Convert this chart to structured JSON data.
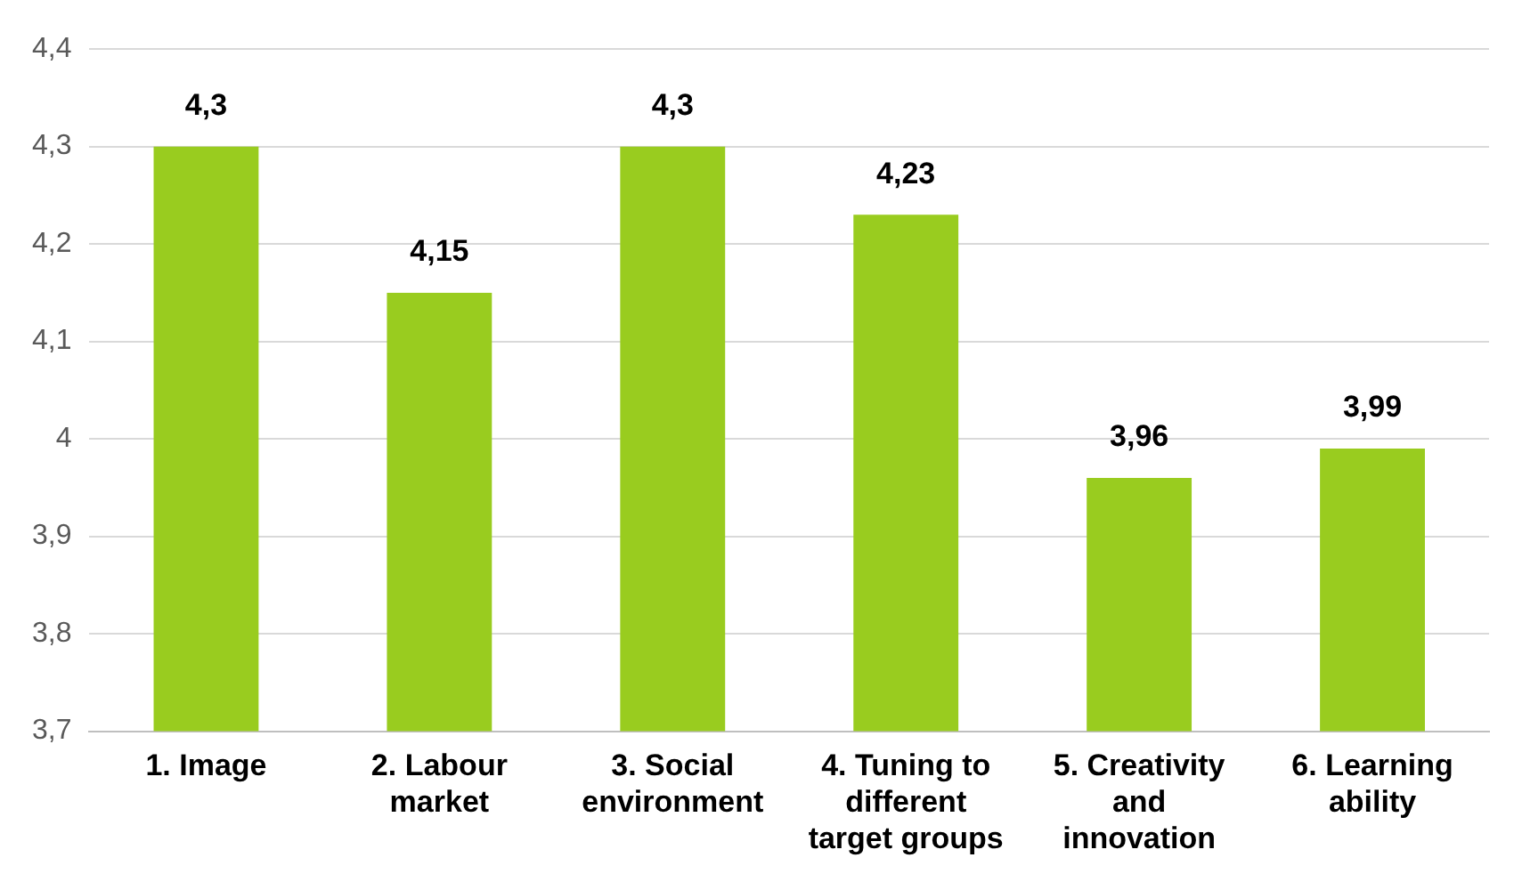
{
  "chart_data": {
    "type": "bar",
    "categories": [
      "1. Image",
      "2. Labour market",
      "3. Social environment",
      "4. Tuning to different target groups",
      "5. Creativity and innovation",
      "6. Learning ability"
    ],
    "values": [
      4.3,
      4.15,
      4.3,
      4.23,
      3.96,
      3.99
    ],
    "value_labels": [
      "4,3",
      "4,15",
      "4,3",
      "4,23",
      "3,96",
      "3,99"
    ],
    "color": "#99cc1f",
    "ylim": [
      3.7,
      4.4
    ],
    "yticks": [
      {
        "value": 3.7,
        "label": "3,7"
      },
      {
        "value": 3.8,
        "label": "3,8"
      },
      {
        "value": 3.9,
        "label": "3,9"
      },
      4,
      {
        "value": 4.1,
        "label": "4,1"
      },
      {
        "value": 4.2,
        "label": "4,2"
      },
      {
        "value": 4.3,
        "label": "4,3"
      },
      {
        "value": 4.4,
        "label": "4,4"
      }
    ],
    "grid": "y",
    "legend": false
  }
}
